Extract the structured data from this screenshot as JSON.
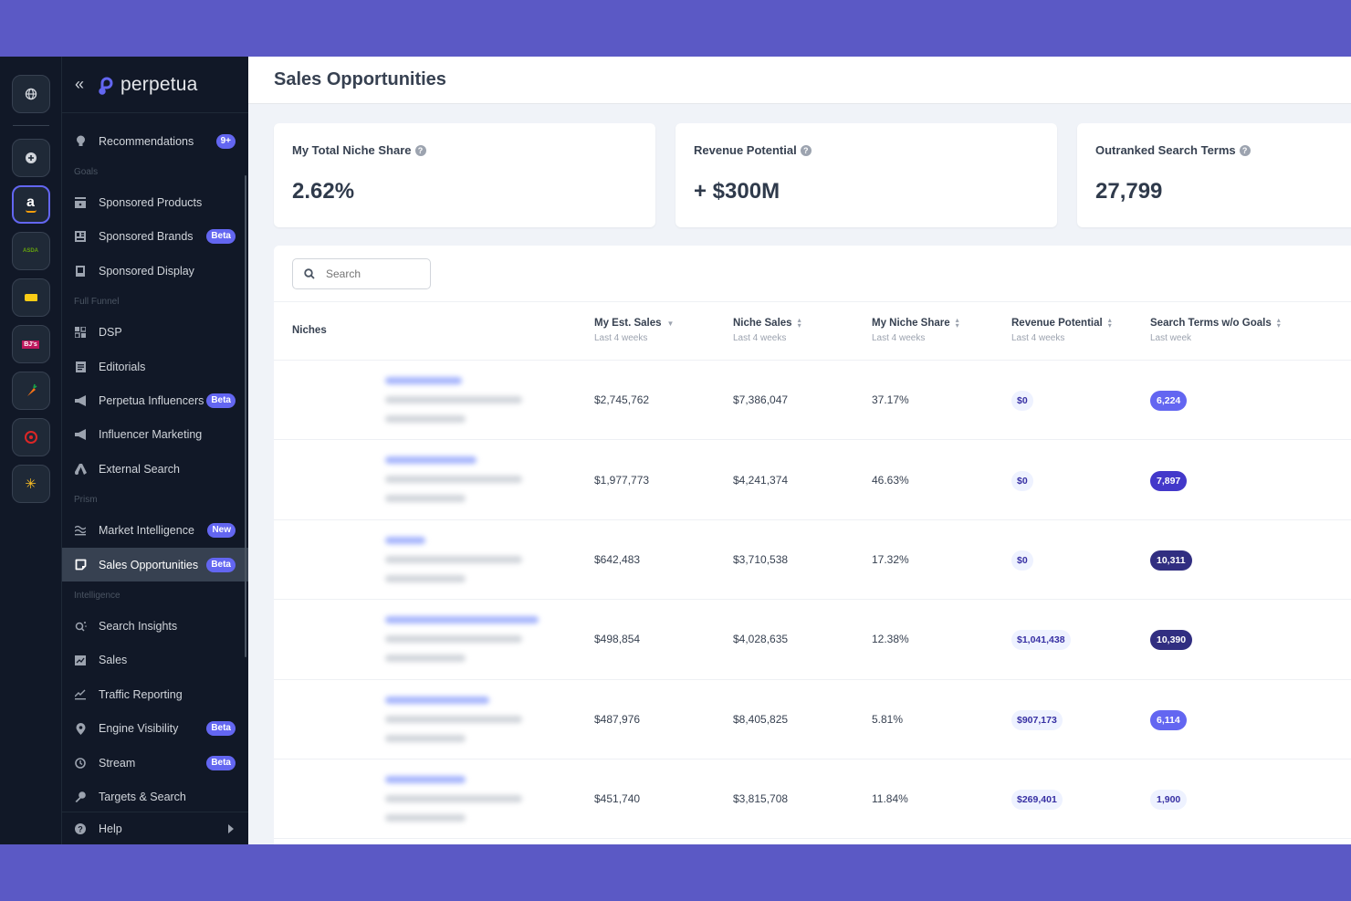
{
  "rail": {
    "items": [
      {
        "name": "global-icon",
        "glyph": "⊕"
      },
      {
        "name": "add-icon",
        "glyph": "⊕"
      },
      {
        "name": "amazon-icon",
        "glyph": "a"
      },
      {
        "name": "asda-icon",
        "glyph": "ASDA"
      },
      {
        "name": "tag-icon",
        "glyph": ""
      },
      {
        "name": "bjs-icon",
        "glyph": "BJ's"
      },
      {
        "name": "carrot-icon",
        "glyph": "🥕"
      },
      {
        "name": "target-icon",
        "glyph": "◎"
      },
      {
        "name": "walmart-icon",
        "glyph": "✳"
      }
    ]
  },
  "sidebar": {
    "logo_text": "perpetua",
    "collapse_glyph": "«",
    "recommendations": {
      "label": "Recommendations",
      "badge": "9+"
    },
    "sections": {
      "goals": "Goals",
      "full_funnel": "Full Funnel",
      "prism": "Prism",
      "intelligence": "Intelligence"
    },
    "items": {
      "sponsored_products": "Sponsored Products",
      "sponsored_brands": "Sponsored Brands",
      "sponsored_display": "Sponsored Display",
      "dsp": "DSP",
      "editorials": "Editorials",
      "perpetua_influencers": "Perpetua Influencers",
      "influencer_marketing": "Influencer Marketing",
      "external_search": "External Search",
      "market_intelligence": "Market Intelligence",
      "sales_opportunities": "Sales Opportunities",
      "search_insights": "Search Insights",
      "sales": "Sales",
      "traffic_reporting": "Traffic Reporting",
      "engine_visibility": "Engine Visibility",
      "stream": "Stream",
      "targets_search": "Targets & Search",
      "help": "Help"
    },
    "badges": {
      "beta": "Beta",
      "new": "New"
    }
  },
  "page": {
    "title": "Sales Opportunities"
  },
  "cards": [
    {
      "label": "My Total Niche Share",
      "value": "2.62%"
    },
    {
      "label": "Revenue Potential",
      "value": "+ $300M"
    },
    {
      "label": "Outranked Search Terms",
      "value": "27,799"
    }
  ],
  "search": {
    "placeholder": "Search"
  },
  "table": {
    "columns": [
      {
        "title": "Niches",
        "sub": ""
      },
      {
        "title": "My Est. Sales",
        "sub": "Last 4 weeks"
      },
      {
        "title": "Niche Sales",
        "sub": "Last 4 weeks"
      },
      {
        "title": "My Niche Share",
        "sub": "Last 4 weeks"
      },
      {
        "title": "Revenue Potential",
        "sub": "Last 4 weeks"
      },
      {
        "title": "Search Terms w/o Goals",
        "sub": "Last week"
      }
    ],
    "rows": [
      {
        "my_est_sales": "$2,745,762",
        "niche_sales": "$7,386,047",
        "niche_share": "37.17%",
        "revenue_potential": "$0",
        "search_terms": "6,224",
        "st_color": "#6366f1",
        "st_text": "#ffffff",
        "blur_w": 84
      },
      {
        "my_est_sales": "$1,977,773",
        "niche_sales": "$4,241,374",
        "niche_share": "46.63%",
        "revenue_potential": "$0",
        "search_terms": "7,897",
        "st_color": "#4338ca",
        "st_text": "#ffffff",
        "blur_w": 100
      },
      {
        "my_est_sales": "$642,483",
        "niche_sales": "$3,710,538",
        "niche_share": "17.32%",
        "revenue_potential": "$0",
        "search_terms": "10,311",
        "st_color": "#312e81",
        "st_text": "#ffffff",
        "blur_w": 44
      },
      {
        "my_est_sales": "$498,854",
        "niche_sales": "$4,028,635",
        "niche_share": "12.38%",
        "revenue_potential": "$1,041,438",
        "search_terms": "10,390",
        "st_color": "#312e81",
        "st_text": "#ffffff",
        "blur_w": 168
      },
      {
        "my_est_sales": "$487,976",
        "niche_sales": "$8,405,825",
        "niche_share": "5.81%",
        "revenue_potential": "$907,173",
        "search_terms": "6,114",
        "st_color": "#6366f1",
        "st_text": "#ffffff",
        "blur_w": 114
      },
      {
        "my_est_sales": "$451,740",
        "niche_sales": "$3,815,708",
        "niche_share": "11.84%",
        "revenue_potential": "$269,401",
        "search_terms": "1,900",
        "st_color": "#eef2ff",
        "st_text": "#3730a3",
        "blur_w": 88
      }
    ]
  }
}
